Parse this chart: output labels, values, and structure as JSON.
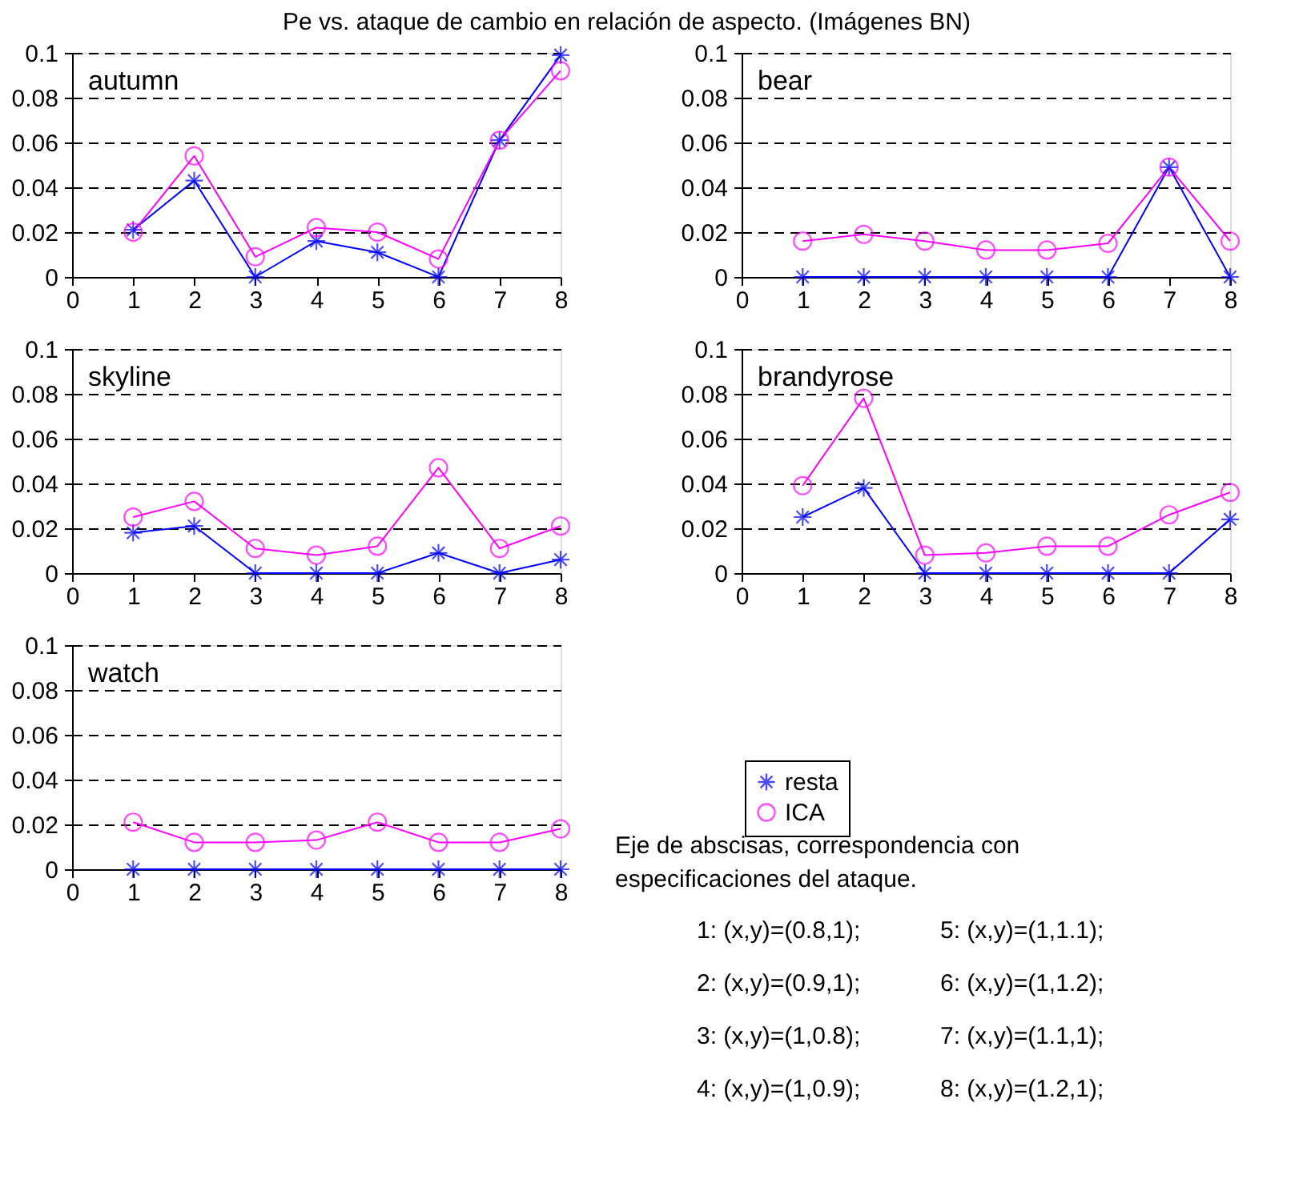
{
  "chart_data": [
    {
      "type": "line",
      "title": "Pe vs. ataque de cambio en relación de aspecto. (Imágenes BN)",
      "x": [
        1,
        2,
        3,
        4,
        5,
        6,
        7,
        8
      ],
      "xlim": [
        0,
        8
      ],
      "xticks": [
        0,
        1,
        2,
        3,
        4,
        5,
        6,
        7,
        8
      ],
      "ylim": [
        0,
        0.1
      ],
      "yticks": [
        0,
        0.02,
        0.04,
        0.06,
        0.08,
        0.1
      ],
      "grid": "y",
      "legend": false,
      "line_style": "solid",
      "annotations": [
        "autumn"
      ],
      "series": [
        {
          "color": "#0000ff",
          "marker": "cross",
          "values": [
            0.021,
            0.043,
            0,
            0.016,
            0.011,
            0,
            0.061,
            0.099
          ]
        },
        {
          "color": "#ff00ff",
          "marker": "circle",
          "values": [
            0.02,
            0.054,
            0.009,
            0.022,
            0.02,
            0.008,
            0.061,
            0.092
          ]
        }
      ]
    },
    {
      "type": "line",
      "x": [
        1,
        2,
        3,
        4,
        5,
        6,
        7,
        8
      ],
      "xlim": [
        0,
        8
      ],
      "xticks": [
        0,
        1,
        2,
        3,
        4,
        5,
        6,
        7,
        8
      ],
      "ylim": [
        0,
        0.1
      ],
      "yticks": [
        0,
        0.02,
        0.04,
        0.06,
        0.08,
        0.1
      ],
      "grid": "y",
      "legend": false,
      "line_style": "solid",
      "annotations": [
        "bear"
      ],
      "series": [
        {
          "color": "#0000ff",
          "marker": "cross",
          "values": [
            0,
            0,
            0,
            0,
            0,
            0,
            0.049,
            0
          ]
        },
        {
          "color": "#ff00ff",
          "marker": "circle",
          "values": [
            0.016,
            0.019,
            0.016,
            0.012,
            0.012,
            0.015,
            0.049,
            0.016
          ]
        }
      ]
    },
    {
      "type": "line",
      "x": [
        1,
        2,
        3,
        4,
        5,
        6,
        7,
        8
      ],
      "xlim": [
        0,
        8
      ],
      "xticks": [
        0,
        1,
        2,
        3,
        4,
        5,
        6,
        7,
        8
      ],
      "ylim": [
        0,
        0.1
      ],
      "yticks": [
        0,
        0.02,
        0.04,
        0.06,
        0.08,
        0.1
      ],
      "grid": "y",
      "legend": false,
      "line_style": "solid",
      "annotations": [
        "skyline"
      ],
      "series": [
        {
          "color": "#0000ff",
          "marker": "cross",
          "values": [
            0.018,
            0.021,
            0,
            0,
            0,
            0.009,
            0,
            0.006
          ]
        },
        {
          "color": "#ff00ff",
          "marker": "circle",
          "values": [
            0.025,
            0.032,
            0.011,
            0.008,
            0.012,
            0.047,
            0.011,
            0.021
          ]
        }
      ]
    },
    {
      "type": "line",
      "x": [
        1,
        2,
        3,
        4,
        5,
        6,
        7,
        8
      ],
      "xlim": [
        0,
        8
      ],
      "xticks": [
        0,
        1,
        2,
        3,
        4,
        5,
        6,
        7,
        8
      ],
      "ylim": [
        0,
        0.1
      ],
      "yticks": [
        0,
        0.02,
        0.04,
        0.06,
        0.08,
        0.1
      ],
      "grid": "y",
      "legend": false,
      "line_style": "solid",
      "annotations": [
        "brandyrose"
      ],
      "series": [
        {
          "color": "#0000ff",
          "marker": "cross",
          "values": [
            0.025,
            0.038,
            0,
            0,
            0,
            0,
            0,
            0.024
          ]
        },
        {
          "color": "#ff00ff",
          "marker": "circle",
          "values": [
            0.039,
            0.078,
            0.008,
            0.009,
            0.012,
            0.012,
            0.026,
            0.036
          ]
        }
      ]
    },
    {
      "type": "line",
      "x": [
        1,
        2,
        3,
        4,
        5,
        6,
        7,
        8
      ],
      "xlim": [
        0,
        8
      ],
      "xticks": [
        0,
        1,
        2,
        3,
        4,
        5,
        6,
        7,
        8
      ],
      "ylim": [
        0,
        0.1
      ],
      "yticks": [
        0,
        0.02,
        0.04,
        0.06,
        0.08,
        0.1
      ],
      "grid": "y",
      "legend": "right",
      "line_style": "solid",
      "annotations": [
        "watch",
        "Eje de abscisas, correspondencia con especificaciones del ataque.",
        "1: (x,y)=(0.8,1);",
        "2: (x,y)=(0.9,1);",
        "3: (x,y)=(1,0.8);",
        "4: (x,y)=(1,0.9);",
        "5: (x,y)=(1,1.1);",
        "6: (x,y)=(1,1.2);",
        "7: (x,y)=(1.1,1);",
        "8: (x,y)=(1.2,1);"
      ],
      "series": [
        {
          "name": "resta",
          "color": "#0000ff",
          "marker": "cross",
          "values": [
            0,
            0,
            0,
            0,
            0,
            0,
            0,
            0
          ]
        },
        {
          "name": "ICA",
          "color": "#ff00ff",
          "marker": "circle",
          "values": [
            0.021,
            0.012,
            0.012,
            0.013,
            0.021,
            0.012,
            0.012,
            0.018
          ]
        }
      ]
    }
  ]
}
